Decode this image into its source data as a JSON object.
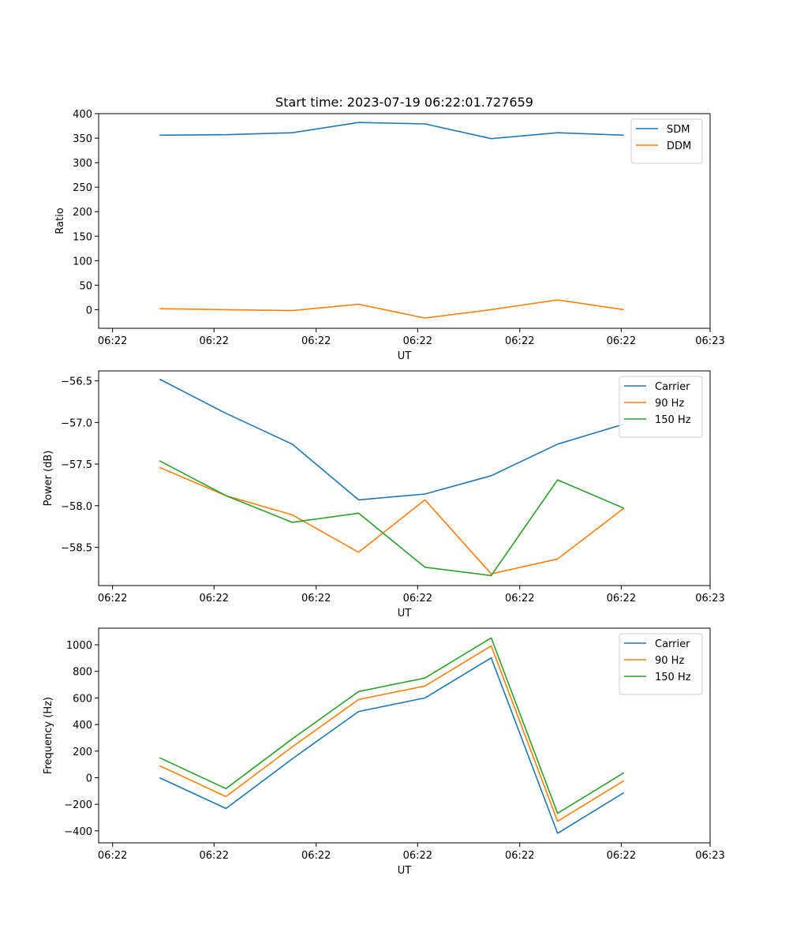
{
  "chart_data": [
    {
      "type": "line",
      "title": "Start time: 2023-07-19 06:22:01.727659",
      "xlabel": "UT",
      "ylabel": "Ratio",
      "x_tick_labels": [
        "06:22",
        "06:22",
        "06:22",
        "06:22",
        "06:22",
        "06:22",
        "06:23"
      ],
      "x": [
        1,
        2,
        3,
        4,
        5,
        6,
        7,
        8
      ],
      "xlim": [
        0.08,
        9.3
      ],
      "ylim": [
        -38,
        400
      ],
      "y_ticks": [
        0,
        50,
        100,
        150,
        200,
        250,
        300,
        350,
        400
      ],
      "legend": "top-right",
      "series": [
        {
          "name": "SDM",
          "color": "#1f77b4",
          "values": [
            356,
            357,
            361,
            382,
            379,
            349,
            361,
            356
          ]
        },
        {
          "name": "DDM",
          "color": "#ff7f0e",
          "values": [
            2,
            0,
            -2,
            11,
            -17,
            0,
            20,
            0
          ]
        }
      ]
    },
    {
      "type": "line",
      "title": "",
      "xlabel": "UT",
      "ylabel": "Power (dB)",
      "x_tick_labels": [
        "06:22",
        "06:22",
        "06:22",
        "06:22",
        "06:22",
        "06:22",
        "06:23"
      ],
      "x": [
        1,
        2,
        3,
        4,
        5,
        6,
        7,
        8
      ],
      "xlim": [
        0.08,
        9.3
      ],
      "ylim": [
        -58.96,
        -56.38
      ],
      "y_ticks": [
        -58.5,
        -58.0,
        -57.5,
        -57.0,
        -56.5
      ],
      "y_tick_labels": [
        "−58.5",
        "−58.0",
        "−57.5",
        "−57.0",
        "−56.5"
      ],
      "legend": "top-right",
      "series": [
        {
          "name": "Carrier",
          "color": "#1f77b4",
          "values": [
            -56.48,
            -56.89,
            -57.26,
            -57.93,
            -57.86,
            -57.64,
            -57.26,
            -57.02
          ]
        },
        {
          "name": "90 Hz",
          "color": "#ff7f0e",
          "values": [
            -57.54,
            -57.88,
            -58.11,
            -58.56,
            -57.93,
            -58.82,
            -58.64,
            -58.03
          ]
        },
        {
          "name": "150 Hz",
          "color": "#2ca02c",
          "values": [
            -57.46,
            -57.88,
            -58.2,
            -58.09,
            -58.74,
            -58.84,
            -57.69,
            -58.03
          ]
        }
      ]
    },
    {
      "type": "line",
      "title": "",
      "xlabel": "UT",
      "ylabel": "Frequency (Hz)",
      "x_tick_labels": [
        "06:22",
        "06:22",
        "06:22",
        "06:22",
        "06:22",
        "06:22",
        "06:23"
      ],
      "x": [
        1,
        2,
        3,
        4,
        5,
        6,
        7,
        8
      ],
      "xlim": [
        0.08,
        9.3
      ],
      "ylim": [
        -490,
        1125
      ],
      "y_ticks": [
        -400,
        -200,
        0,
        200,
        400,
        600,
        800,
        1000
      ],
      "y_tick_labels": [
        "−400",
        "−200",
        "0",
        "200",
        "400",
        "600",
        "800",
        "1000"
      ],
      "legend": "top-right",
      "series": [
        {
          "name": "Carrier",
          "color": "#1f77b4",
          "values": [
            0,
            -232,
            142,
            498,
            600,
            902,
            -418,
            -113
          ]
        },
        {
          "name": "90 Hz",
          "color": "#ff7f0e",
          "values": [
            90,
            -142,
            232,
            588,
            690,
            992,
            -328,
            -23
          ]
        },
        {
          "name": "150 Hz",
          "color": "#2ca02c",
          "values": [
            150,
            -82,
            292,
            648,
            750,
            1052,
            -268,
            37
          ]
        }
      ]
    }
  ]
}
